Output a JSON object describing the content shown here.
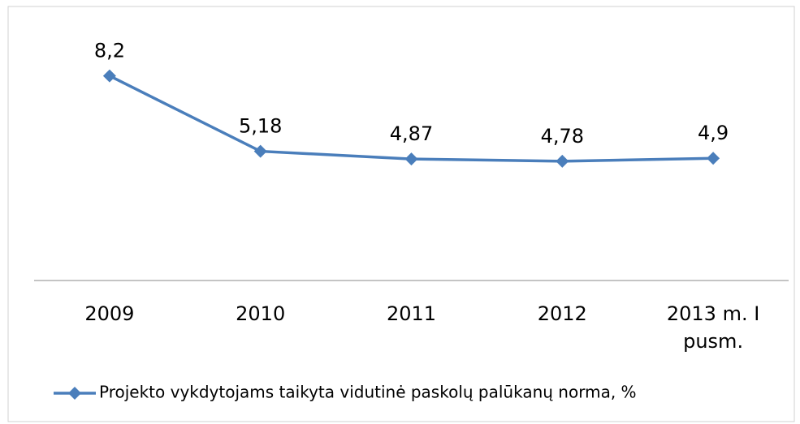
{
  "chart_data": {
    "type": "line",
    "categories": [
      "2009",
      "2010",
      "2011",
      "2012",
      "2013 m. I pusm."
    ],
    "series": [
      {
        "name": "Projekto vykdytojams taikyta vidutinė paskolų palūkanų norma, %",
        "color": "#4a7ebb",
        "values": [
          8.2,
          5.18,
          4.87,
          4.78,
          4.9
        ],
        "value_labels": [
          "8,2",
          "5,18",
          "4,87",
          "4,78",
          "4,9"
        ]
      }
    ],
    "ylim": [
      0,
      9
    ],
    "legend": "bottom"
  }
}
